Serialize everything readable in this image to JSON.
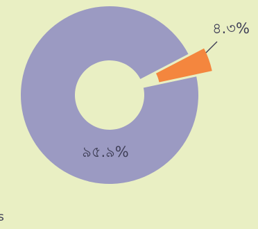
{
  "chart_data": {
    "type": "pie",
    "style": "donut",
    "slices": [
      {
        "label": "৯৫.৯%",
        "value": 95.9,
        "color": "#9b9ac2",
        "exploded": false
      },
      {
        "label": "৪.৩%",
        "value": 4.3,
        "color": "#f4863e",
        "exploded": true
      }
    ],
    "edge_text": "s",
    "background": "#e9efc3",
    "label_color": "#3f3f57"
  }
}
